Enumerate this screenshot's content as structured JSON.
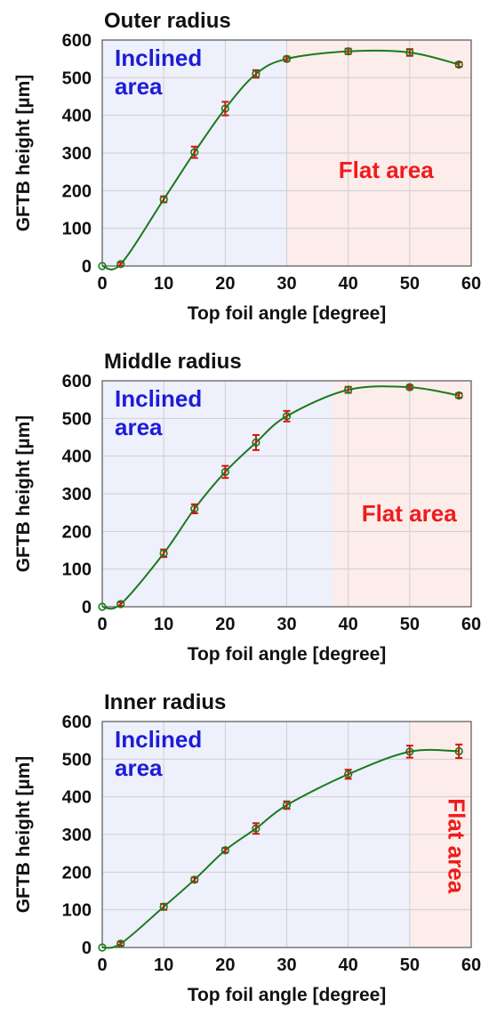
{
  "chart_data": [
    {
      "type": "line",
      "title": "Outer radius",
      "xlabel": "Top foil angle [degree]",
      "ylabel": "GFTB height [µm]",
      "xlim": [
        0,
        60
      ],
      "ylim": [
        0,
        600
      ],
      "xticks": [
        "0",
        "10",
        "20",
        "30",
        "40",
        "50",
        "60"
      ],
      "yticks": [
        "0",
        "100",
        "200",
        "300",
        "400",
        "500",
        "600"
      ],
      "grid": true,
      "regions": [
        {
          "label": "Inclined\narea",
          "x_range": [
            0,
            30
          ],
          "color": "#eef0fb",
          "text_color": "#1d1dd6"
        },
        {
          "label": "Flat area",
          "x_range": [
            30,
            60
          ],
          "color": "#fcecea",
          "text_color": "#ee1c1c"
        }
      ],
      "series": [
        {
          "x": [
            0,
            3,
            10,
            15,
            20,
            25,
            30,
            40,
            50,
            58
          ],
          "y": [
            0,
            5,
            177,
            302,
            418,
            510,
            550,
            570,
            567,
            535
          ],
          "error": [
            0,
            4,
            8,
            15,
            18,
            10,
            6,
            7,
            9,
            6
          ]
        }
      ]
    },
    {
      "type": "line",
      "title": "Middle radius",
      "xlabel": "Top foil angle [degree]",
      "ylabel": "GFTB height [µm]",
      "xlim": [
        0,
        60
      ],
      "ylim": [
        0,
        600
      ],
      "xticks": [
        "0",
        "10",
        "20",
        "30",
        "40",
        "50",
        "60"
      ],
      "yticks": [
        "0",
        "100",
        "200",
        "300",
        "400",
        "500",
        "600"
      ],
      "grid": true,
      "regions": [
        {
          "label": "Inclined\narea",
          "x_range": [
            0,
            37.5
          ],
          "color": "#eef0fb",
          "text_color": "#1d1dd6"
        },
        {
          "label": "Flat area",
          "x_range": [
            37.5,
            60
          ],
          "color": "#fcecea",
          "text_color": "#ee1c1c"
        }
      ],
      "series": [
        {
          "x": [
            0,
            3,
            10,
            15,
            20,
            25,
            30,
            40,
            50,
            58
          ],
          "y": [
            0,
            7,
            142,
            260,
            358,
            436,
            506,
            576,
            583,
            561
          ],
          "error": [
            0,
            5,
            10,
            12,
            16,
            20,
            14,
            8,
            5,
            6
          ]
        }
      ]
    },
    {
      "type": "line",
      "title": "Inner radius",
      "xlabel": "Top foil angle [degree]",
      "ylabel": "GFTB height [µm]",
      "xlim": [
        0,
        60
      ],
      "ylim": [
        0,
        600
      ],
      "xticks": [
        "0",
        "10",
        "20",
        "30",
        "40",
        "50",
        "60"
      ],
      "yticks": [
        "0",
        "100",
        "200",
        "300",
        "400",
        "500",
        "600"
      ],
      "grid": true,
      "regions": [
        {
          "label": "Inclined\narea",
          "x_range": [
            0,
            50
          ],
          "color": "#eef0fb",
          "text_color": "#1d1dd6"
        },
        {
          "label": "Flat area",
          "x_range": [
            50,
            60
          ],
          "color": "#fcecea",
          "text_color": "#ee1c1c",
          "rotated": true
        }
      ],
      "series": [
        {
          "x": [
            0,
            3,
            10,
            15,
            20,
            25,
            30,
            40,
            50,
            58
          ],
          "y": [
            0,
            10,
            108,
            180,
            258,
            316,
            378,
            460,
            520,
            521
          ],
          "error": [
            0,
            5,
            8,
            6,
            6,
            14,
            10,
            12,
            16,
            18
          ]
        }
      ]
    }
  ],
  "style": {
    "line_color": "#1b7a1b",
    "marker_color": "#1b7a1b",
    "error_color": "#dd1111",
    "grid_color": "#cfcfcf"
  }
}
